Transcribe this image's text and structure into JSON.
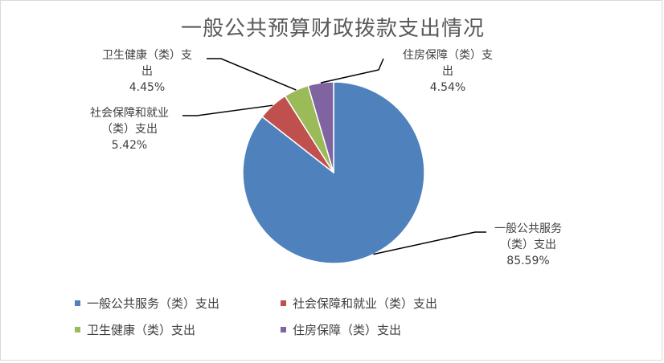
{
  "chart_data": {
    "type": "pie",
    "title": "一般公共预算财政拨款支出情况",
    "legend_position": "bottom",
    "slices": [
      {
        "name": "一般公共服务（类）支出",
        "value": 85.59,
        "label_lines": [
          "一般公共服务",
          "（类）支出",
          "85.59%"
        ],
        "color": "#4f81bd"
      },
      {
        "name": "社会保障和就业（类）支出",
        "value": 5.42,
        "label_lines": [
          "社会保障和就业",
          "（类）支出",
          "5.42%"
        ],
        "color": "#c0504d"
      },
      {
        "name": "卫生健康（类）支出",
        "value": 4.45,
        "label_lines": [
          "卫生健康（类）支",
          "出",
          "4.45%"
        ],
        "color": "#9bbb59"
      },
      {
        "name": "住房保障（类）支出",
        "value": 4.54,
        "label_lines": [
          "住房保障（类）支",
          "出",
          "4.54%"
        ],
        "color": "#8064a2"
      }
    ]
  }
}
